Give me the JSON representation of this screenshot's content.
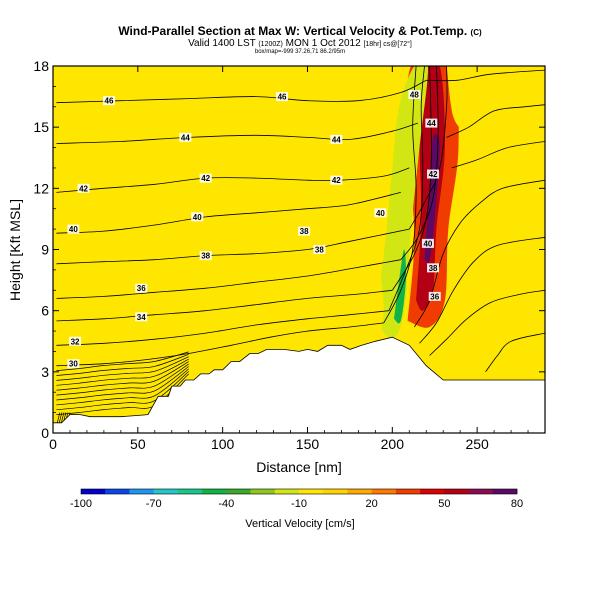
{
  "header": {
    "title": "Wind-Parallel Section at Max W: Vertical Velocity & Pot.Temp.",
    "title_badge": "(C)",
    "valid_prefix": "Valid 1400 LST",
    "valid_utc": "(1200Z)",
    "valid_date": "MON 1 Oct 2012",
    "valid_suffix": "[18hr] cs@[72°]",
    "info_line": "box/map=-999 37.26,71 86.2/95m"
  },
  "chart_data": {
    "type": "heatmap",
    "title": "Wind-Parallel Section at Max W: Vertical Velocity & Pot.Temp.",
    "xlabel": "Distance [nm]",
    "ylabel": "Height [Kft MSL]",
    "xlim": [
      0,
      290
    ],
    "ylim": [
      0,
      18
    ],
    "x_ticks": [
      0,
      50,
      100,
      150,
      200,
      250
    ],
    "y_ticks": [
      0,
      3,
      6,
      9,
      12,
      15,
      18
    ],
    "x_tick_labels": [
      "0",
      "50",
      "100",
      "150",
      "200",
      "250"
    ],
    "y_tick_labels": [
      "0",
      "3",
      "6",
      "9",
      "12",
      "15",
      "18"
    ],
    "colorbar": {
      "label": "Vertical Velocity [cm/s]",
      "min": -100,
      "max": 80,
      "step": 10,
      "tick_values": [
        -100,
        -70,
        -40,
        -10,
        20,
        50,
        80
      ],
      "tick_labels": [
        "-100",
        "-70",
        "-40",
        "-10",
        "20",
        "50",
        "80"
      ],
      "colors": [
        "#0000cc",
        "#0a46e6",
        "#1e96f0",
        "#22c8c8",
        "#18c88a",
        "#10b446",
        "#3aa828",
        "#8cc81e",
        "#d2e614",
        "#ffe600",
        "#ffd200",
        "#ffaa00",
        "#ff7800",
        "#f03c00",
        "#dc0000",
        "#b40014",
        "#8c0a50",
        "#5a0a64"
      ]
    },
    "terrain": [
      [
        0,
        0.5
      ],
      [
        5,
        0.5
      ],
      [
        10,
        0.9
      ],
      [
        16,
        0.9
      ],
      [
        22,
        0.8
      ],
      [
        40,
        0.8
      ],
      [
        56,
        0.9
      ],
      [
        62,
        1.8
      ],
      [
        68,
        1.8
      ],
      [
        70,
        2.3
      ],
      [
        75,
        2.3
      ],
      [
        78,
        2.6
      ],
      [
        83,
        2.6
      ],
      [
        87,
        2.9
      ],
      [
        92,
        2.9
      ],
      [
        95,
        3.1
      ],
      [
        100,
        3.1
      ],
      [
        105,
        3.5
      ],
      [
        110,
        3.5
      ],
      [
        116,
        3.9
      ],
      [
        121,
        3.9
      ],
      [
        126,
        4.1
      ],
      [
        136,
        4.1
      ],
      [
        145,
        4.0
      ],
      [
        150,
        4.1
      ],
      [
        156,
        4.0
      ],
      [
        162,
        4.3
      ],
      [
        170,
        4.3
      ],
      [
        175,
        4.1
      ],
      [
        182,
        4.3
      ],
      [
        190,
        4.5
      ],
      [
        200,
        4.7
      ],
      [
        210,
        4.3
      ],
      [
        220,
        3.3
      ],
      [
        230,
        2.6
      ],
      [
        280,
        2.6
      ],
      [
        290,
        2.6
      ]
    ],
    "color_regions": [
      {
        "name": "orange-updraft-halo",
        "value": 30,
        "points": [
          [
            209,
            5.5
          ],
          [
            213,
            9.5
          ],
          [
            210,
            13.5
          ],
          [
            211,
            18
          ],
          [
            235,
            18
          ],
          [
            239,
            14
          ],
          [
            233,
            10
          ],
          [
            231,
            6.5
          ],
          [
            222,
            5.2
          ]
        ]
      },
      {
        "name": "red-updraft",
        "value": 50,
        "points": [
          [
            214,
            6.5
          ],
          [
            217,
            10.5
          ],
          [
            216,
            14.5
          ],
          [
            218,
            18
          ],
          [
            228,
            18
          ],
          [
            231,
            14
          ],
          [
            226,
            10
          ],
          [
            224,
            7
          ],
          [
            218,
            6
          ]
        ]
      },
      {
        "name": "darkred-updraft-core",
        "value": 70,
        "points": [
          [
            219,
            8.5
          ],
          [
            222,
            12
          ],
          [
            224,
            14.5
          ],
          [
            228,
            14
          ],
          [
            225,
            10.5
          ],
          [
            222,
            8.5
          ]
        ]
      },
      {
        "name": "green-downdraft-band",
        "value": -20,
        "points": [
          [
            190,
            5.5
          ],
          [
            196,
            9.5
          ],
          [
            200,
            13
          ],
          [
            204,
            16
          ],
          [
            213,
            18
          ],
          [
            221,
            18
          ],
          [
            216,
            14
          ],
          [
            211,
            10
          ],
          [
            207,
            6
          ],
          [
            200,
            4.6
          ]
        ]
      },
      {
        "name": "teal-downdraft-core",
        "value": -50,
        "points": [
          [
            201,
            5.6
          ],
          [
            204,
            7.5
          ],
          [
            207,
            9
          ],
          [
            208,
            7.5
          ],
          [
            205,
            5.5
          ]
        ]
      },
      {
        "name": "green-column-mid",
        "value": -10,
        "points": [
          [
            169,
            7
          ],
          [
            171,
            9.5
          ],
          [
            173,
            12.5
          ],
          [
            176,
            11
          ],
          [
            174,
            8
          ],
          [
            172,
            6.5
          ]
        ]
      },
      {
        "name": "green-column-right",
        "value": -10,
        "points": [
          [
            250,
            6.5
          ],
          [
            256,
            9.5
          ],
          [
            262,
            13
          ],
          [
            268,
            12.5
          ],
          [
            262,
            9
          ],
          [
            255,
            6
          ]
        ]
      },
      {
        "name": "green-top-right",
        "value": -10,
        "points": [
          [
            232,
            18
          ],
          [
            236,
            15.5
          ],
          [
            244,
            15
          ],
          [
            253,
            16.5
          ],
          [
            258,
            18
          ]
        ]
      },
      {
        "name": "green-upper-left",
        "value": -10,
        "points": [
          [
            191,
            13
          ],
          [
            194,
            16
          ],
          [
            198,
            17.5
          ],
          [
            201,
            15
          ],
          [
            197,
            12.5
          ]
        ]
      },
      {
        "name": "green-lower-left",
        "value": -10,
        "points": [
          [
            185,
            4.4
          ],
          [
            189,
            6.5
          ],
          [
            192,
            8
          ],
          [
            195,
            6
          ],
          [
            191,
            4.5
          ]
        ]
      }
    ],
    "contours": [
      {
        "label": "30",
        "label_x": 12,
        "points": [
          [
            2,
            3.3
          ],
          [
            30,
            3.4
          ],
          [
            55,
            3.6
          ],
          [
            80,
            3.9
          ],
          [
            105,
            4.3
          ],
          [
            128,
            4.7
          ],
          [
            150,
            5.0
          ],
          [
            175,
            5.2
          ],
          [
            195,
            5.4
          ]
        ]
      },
      {
        "label": "32",
        "label_x": 13,
        "points": [
          [
            2,
            4.3
          ],
          [
            30,
            4.4
          ],
          [
            60,
            4.6
          ],
          [
            90,
            4.9
          ],
          [
            120,
            5.3
          ],
          [
            150,
            5.6
          ],
          [
            175,
            5.8
          ],
          [
            198,
            6.0
          ]
        ]
      },
      {
        "label": "34",
        "label_x": 52,
        "points": [
          [
            2,
            5.5
          ],
          [
            30,
            5.6
          ],
          [
            60,
            5.8
          ],
          [
            90,
            6.0
          ],
          [
            120,
            6.3
          ],
          [
            150,
            6.6
          ],
          [
            178,
            6.8
          ],
          [
            200,
            7.0
          ]
        ]
      },
      {
        "label": "36",
        "label_x": 52,
        "points": [
          [
            2,
            6.6
          ],
          [
            30,
            6.7
          ],
          [
            60,
            6.9
          ],
          [
            90,
            7.1
          ],
          [
            120,
            7.4
          ],
          [
            150,
            7.7
          ],
          [
            178,
            8.1
          ],
          [
            205,
            8.5
          ]
        ]
      },
      {
        "label": "38",
        "label_x": 90,
        "points": [
          [
            2,
            8.3
          ],
          [
            30,
            8.4
          ],
          [
            60,
            8.5
          ],
          [
            90,
            8.7
          ],
          [
            120,
            8.8
          ],
          [
            150,
            9.0
          ],
          [
            175,
            9.4
          ],
          [
            210,
            10.0
          ]
        ]
      },
      {
        "label": "40",
        "label_x": 12,
        "points": [
          [
            2,
            9.8
          ],
          [
            30,
            9.9
          ],
          [
            60,
            10.2
          ],
          [
            90,
            10.6
          ],
          [
            120,
            10.8
          ],
          [
            150,
            11.0
          ],
          [
            175,
            11.2
          ],
          [
            205,
            11.8
          ]
        ]
      },
      {
        "label": "42",
        "label_x": 18,
        "points": [
          [
            2,
            11.8
          ],
          [
            30,
            12.0
          ],
          [
            60,
            12.2
          ],
          [
            90,
            12.5
          ],
          [
            120,
            12.5
          ],
          [
            150,
            12.4
          ],
          [
            170,
            12.4
          ],
          [
            195,
            12.6
          ],
          [
            210,
            13.0
          ]
        ]
      },
      {
        "label": "44",
        "label_x": 78,
        "points": [
          [
            2,
            14.2
          ],
          [
            40,
            14.3
          ],
          [
            80,
            14.5
          ],
          [
            120,
            14.6
          ],
          [
            150,
            14.5
          ],
          [
            175,
            14.4
          ],
          [
            200,
            14.8
          ],
          [
            215,
            15.2
          ]
        ]
      },
      {
        "label": "46",
        "label_x": 33,
        "points": [
          [
            2,
            16.2
          ],
          [
            40,
            16.3
          ],
          [
            80,
            16.4
          ],
          [
            120,
            16.5
          ],
          [
            150,
            16.3
          ],
          [
            180,
            16.3
          ],
          [
            205,
            16.7
          ],
          [
            220,
            17.3
          ]
        ]
      }
    ],
    "annotations": [
      {
        "text": "46",
        "x": 33,
        "y": 16.3
      },
      {
        "text": "46",
        "x": 135,
        "y": 16.5
      },
      {
        "text": "44",
        "x": 78,
        "y": 14.5
      },
      {
        "text": "44",
        "x": 167,
        "y": 14.4
      },
      {
        "text": "42",
        "x": 18,
        "y": 12.0
      },
      {
        "text": "42",
        "x": 90,
        "y": 12.5
      },
      {
        "text": "42",
        "x": 167,
        "y": 12.4
      },
      {
        "text": "40",
        "x": 12,
        "y": 10.0
      },
      {
        "text": "40",
        "x": 85,
        "y": 10.6
      },
      {
        "text": "40",
        "x": 193,
        "y": 10.8
      },
      {
        "text": "38",
        "x": 90,
        "y": 8.7
      },
      {
        "text": "38",
        "x": 148,
        "y": 9.9
      },
      {
        "text": "38",
        "x": 157,
        "y": 9.0
      },
      {
        "text": "36",
        "x": 52,
        "y": 7.1
      },
      {
        "text": "34",
        "x": 52,
        "y": 5.7
      },
      {
        "text": "32",
        "x": 13,
        "y": 4.5
      },
      {
        "text": "30",
        "x": 12,
        "y": 3.4
      },
      {
        "text": "48",
        "x": 213,
        "y": 16.6
      },
      {
        "text": "44",
        "x": 223,
        "y": 15.2
      },
      {
        "text": "42",
        "x": 224,
        "y": 12.7
      },
      {
        "text": "40",
        "x": 221,
        "y": 9.3
      },
      {
        "text": "38",
        "x": 224,
        "y": 8.1
      },
      {
        "text": "36",
        "x": 225,
        "y": 6.7
      }
    ]
  }
}
